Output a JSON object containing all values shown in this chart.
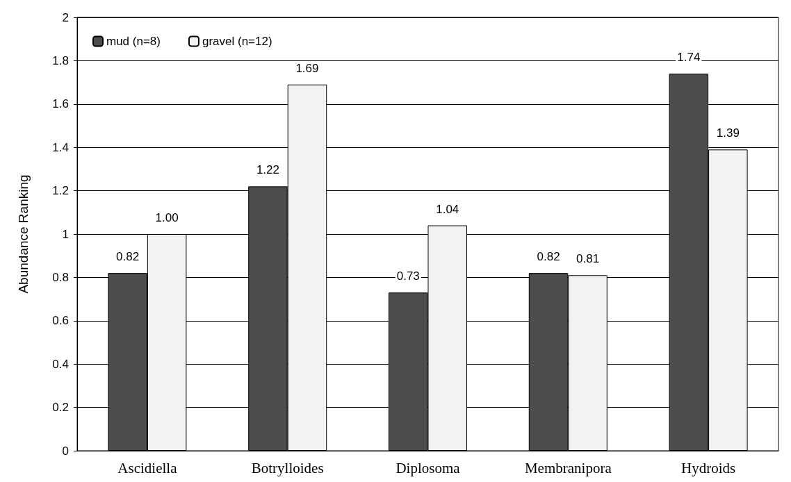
{
  "chart_data": {
    "type": "bar",
    "ylabel": "Abundance Ranking",
    "categories": [
      "Ascidiella",
      "Botrylloides",
      "Diplosoma",
      "Membranipora",
      "Hydroids"
    ],
    "series": [
      {
        "name": "mud (n=8)",
        "color": "#4d4d4d",
        "values": [
          0.82,
          1.22,
          0.73,
          0.82,
          1.74
        ],
        "value_labels": [
          "0.82",
          "1.22",
          "0.73",
          "0.82",
          "1.74"
        ]
      },
      {
        "name": "gravel (n=12)",
        "color": "#f2f2f2",
        "values": [
          1.0,
          1.69,
          1.04,
          0.81,
          1.39
        ],
        "value_labels": [
          "1.00",
          "1.69",
          "1.04",
          "0.81",
          "1.39"
        ]
      }
    ],
    "ylim": [
      0,
      2
    ],
    "yticks": [
      0,
      0.2,
      0.4,
      0.6,
      0.8,
      1,
      1.2,
      1.4,
      1.6,
      1.8,
      2
    ],
    "grid": "y",
    "legend": "top left"
  }
}
